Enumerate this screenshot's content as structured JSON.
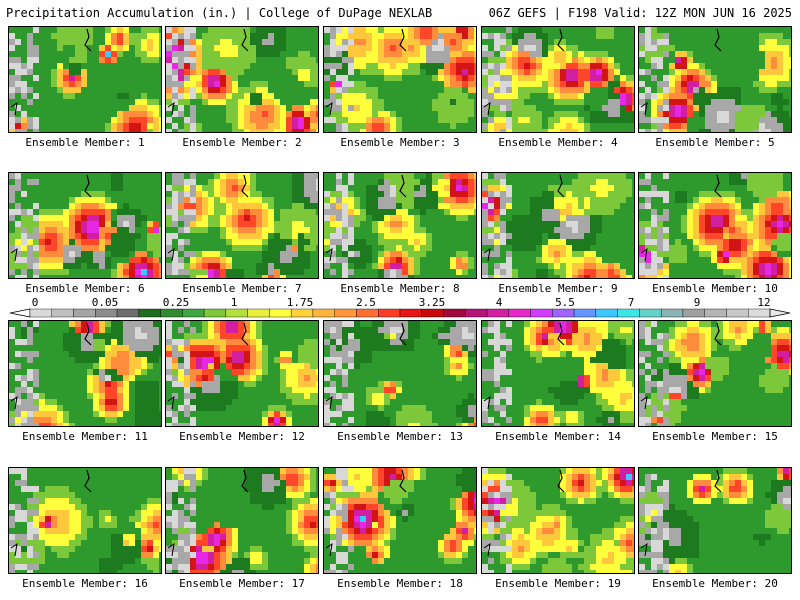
{
  "header": {
    "left": "Precipitation Accumulation (in.) | College of DuPage NEXLAB",
    "right": "06Z GEFS | F198 Valid: 12Z MON JUN 16 2025"
  },
  "panels": [
    {
      "label": "Ensemble Member: 1"
    },
    {
      "label": "Ensemble Member: 2"
    },
    {
      "label": "Ensemble Member: 3"
    },
    {
      "label": "Ensemble Member: 4"
    },
    {
      "label": "Ensemble Member: 5"
    },
    {
      "label": "Ensemble Member: 6"
    },
    {
      "label": "Ensemble Member: 7"
    },
    {
      "label": "Ensemble Member: 8"
    },
    {
      "label": "Ensemble Member: 9"
    },
    {
      "label": "Ensemble Member: 10"
    },
    {
      "label": "Ensemble Member: 11"
    },
    {
      "label": "Ensemble Member: 12"
    },
    {
      "label": "Ensemble Member: 13"
    },
    {
      "label": "Ensemble Member: 14"
    },
    {
      "label": "Ensemble Member: 15"
    },
    {
      "label": "Ensemble Member: 16"
    },
    {
      "label": "Ensemble Member: 17"
    },
    {
      "label": "Ensemble Member: 18"
    },
    {
      "label": "Ensemble Member: 19"
    },
    {
      "label": "Ensemble Member: 20"
    }
  ],
  "colorbar": {
    "labels": [
      "0",
      "0.05",
      "0.25",
      "1",
      "1.75",
      "2.5",
      "3.25",
      "4",
      "5.5",
      "7",
      "9",
      "12"
    ],
    "colors": [
      "#d9d9d9",
      "#c0c0c0",
      "#a6a6a6",
      "#8c8c8c",
      "#6e6e6e",
      "#1e6e1e",
      "#2e8b2e",
      "#3ea63e",
      "#7cc83a",
      "#b4e03c",
      "#e8f03c",
      "#ffff3c",
      "#ffd23c",
      "#ffb43c",
      "#ff963c",
      "#ff6e32",
      "#ff3c28",
      "#e61414",
      "#c80a0a",
      "#a00a3c",
      "#b4147a",
      "#d21ea0",
      "#e628c8",
      "#d23cff",
      "#a064ff",
      "#6496ff",
      "#3cc8ff",
      "#3ce6e6",
      "#64d2c8",
      "#8cb4b4",
      "#a0a0a0",
      "#b4b4b4",
      "#c8c8c8",
      "#dcdcdc"
    ]
  }
}
